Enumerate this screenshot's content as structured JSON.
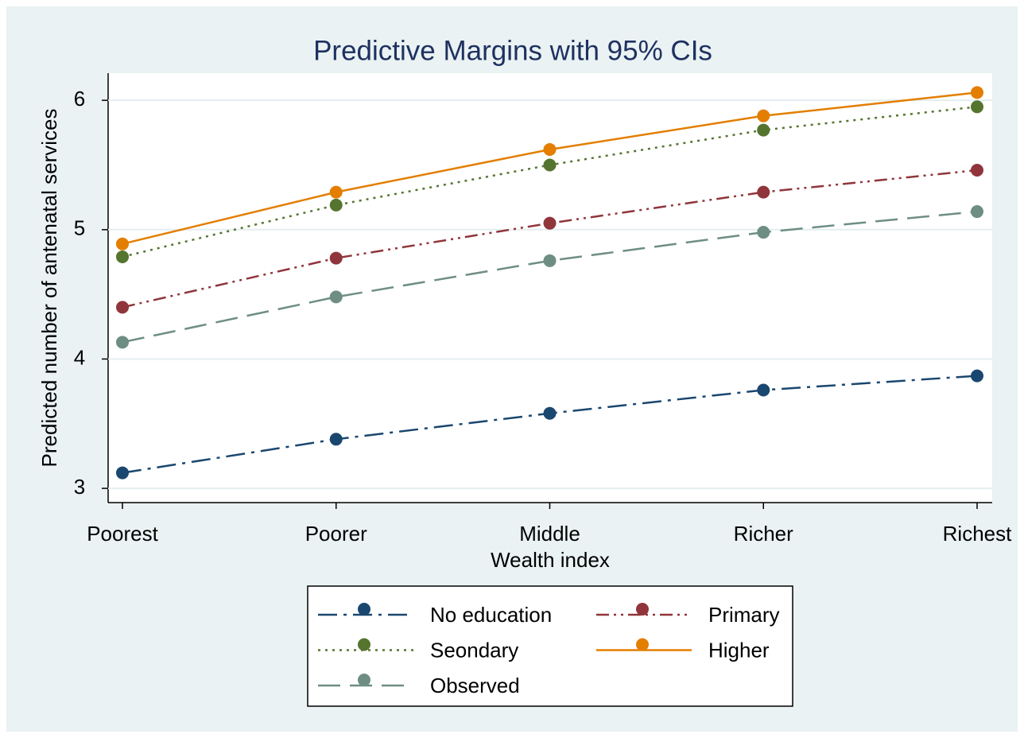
{
  "chart_data": {
    "type": "line",
    "title": "Predictive Margins with 95% CIs",
    "x_label": "Wealth index",
    "y_label": "Predicted number of antenatal services",
    "categories": [
      "Poorest",
      "Poorer",
      "Middle",
      "Richer",
      "Richest"
    ],
    "series": [
      {
        "name": "No education",
        "color": "#1a476f",
        "line_style": "dash-dot",
        "values": [
          3.12,
          3.38,
          3.58,
          3.76,
          3.87
        ]
      },
      {
        "name": "Primary",
        "color": "#90353b",
        "line_style": "dash-dot-dot",
        "values": [
          4.4,
          4.78,
          5.05,
          5.29,
          5.46
        ]
      },
      {
        "name": "Seondary",
        "color": "#55752f",
        "line_style": "dot",
        "values": [
          4.79,
          5.19,
          5.5,
          5.77,
          5.95
        ]
      },
      {
        "name": "Higher",
        "color": "#e37e00",
        "line_style": "solid",
        "values": [
          4.89,
          5.29,
          5.62,
          5.88,
          6.06
        ]
      },
      {
        "name": "Observed",
        "color": "#6e8e84",
        "line_style": "dash",
        "values": [
          4.13,
          4.48,
          4.76,
          4.98,
          5.14
        ]
      }
    ],
    "ylim": [
      2.89,
      6.21
    ],
    "yticks": [
      3,
      4,
      5,
      6
    ],
    "grid": true,
    "legend": "bottom"
  }
}
